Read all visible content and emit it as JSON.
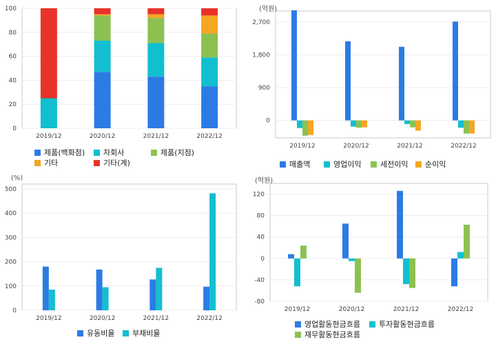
{
  "colors": {
    "blue": "#2c7be5",
    "cyan": "#12bfd0",
    "green": "#8cc152",
    "orange": "#f5a623",
    "red": "#e8332a"
  },
  "chart_data": [
    {
      "type": "bar",
      "stacked": true,
      "categories": [
        "2019/12",
        "2020/12",
        "2021/12",
        "2022/12"
      ],
      "ylim": [
        0,
        100
      ],
      "yticks": [
        0,
        20,
        40,
        60,
        80,
        100
      ],
      "unit": "",
      "series": [
        {
          "name": "제품(백화점)",
          "color": "#2c7be5",
          "values": [
            0,
            47,
            43,
            35
          ]
        },
        {
          "name": "자회사",
          "color": "#12bfd0",
          "values": [
            25,
            26,
            28,
            24
          ]
        },
        {
          "name": "제품(지점)",
          "color": "#8cc152",
          "values": [
            0,
            21,
            21,
            20
          ]
        },
        {
          "name": "기타",
          "color": "#f5a623",
          "values": [
            0,
            1,
            3,
            15
          ]
        },
        {
          "name": "기타(계)",
          "color": "#e8332a",
          "values": [
            75,
            5,
            5,
            6
          ]
        }
      ]
    },
    {
      "type": "bar",
      "categories": [
        "2019/12",
        "2020/12",
        "2021/12",
        "2022/12"
      ],
      "ylim": [
        -480,
        3000
      ],
      "yticks": [
        0,
        900,
        1800,
        2700
      ],
      "ytick_labels": [
        "0",
        "900",
        "1,800",
        "2,700"
      ],
      "unit": "(억원)",
      "series": [
        {
          "name": "매출액",
          "color": "#2c7be5",
          "values": [
            3020,
            2170,
            2020,
            2710
          ]
        },
        {
          "name": "영업이익",
          "color": "#12bfd0",
          "values": [
            -210,
            -170,
            -100,
            -200
          ]
        },
        {
          "name": "세전이익",
          "color": "#8cc152",
          "values": [
            -420,
            -200,
            -190,
            -360
          ]
        },
        {
          "name": "순이익",
          "color": "#f5a623",
          "values": [
            -400,
            -190,
            -280,
            -360
          ]
        }
      ]
    },
    {
      "type": "bar",
      "categories": [
        "2019/12",
        "2020/12",
        "2021/12",
        "2022/12"
      ],
      "ylim": [
        0,
        520
      ],
      "yticks": [
        0,
        100,
        200,
        300,
        400,
        500
      ],
      "unit": "(%)",
      "series": [
        {
          "name": "유동비율",
          "color": "#2c7be5",
          "values": [
            180,
            168,
            127,
            97
          ]
        },
        {
          "name": "부채비율",
          "color": "#12bfd0",
          "values": [
            85,
            95,
            175,
            482
          ]
        }
      ]
    },
    {
      "type": "bar",
      "categories": [
        "2019/12",
        "2020/12",
        "2021/12",
        "2022/12"
      ],
      "ylim": [
        -80,
        140
      ],
      "yticks": [
        -80,
        -40,
        0,
        40,
        80,
        120
      ],
      "unit": "(억원)",
      "series": [
        {
          "name": "영업활동현금흐름",
          "color": "#2c7be5",
          "values": [
            8,
            65,
            126,
            -52
          ]
        },
        {
          "name": "투자활동현금흐름",
          "color": "#12bfd0",
          "values": [
            -52,
            -5,
            -48,
            12
          ]
        },
        {
          "name": "재무활동현금흐름",
          "color": "#8cc152",
          "values": [
            24,
            -64,
            -55,
            63
          ]
        }
      ]
    }
  ]
}
